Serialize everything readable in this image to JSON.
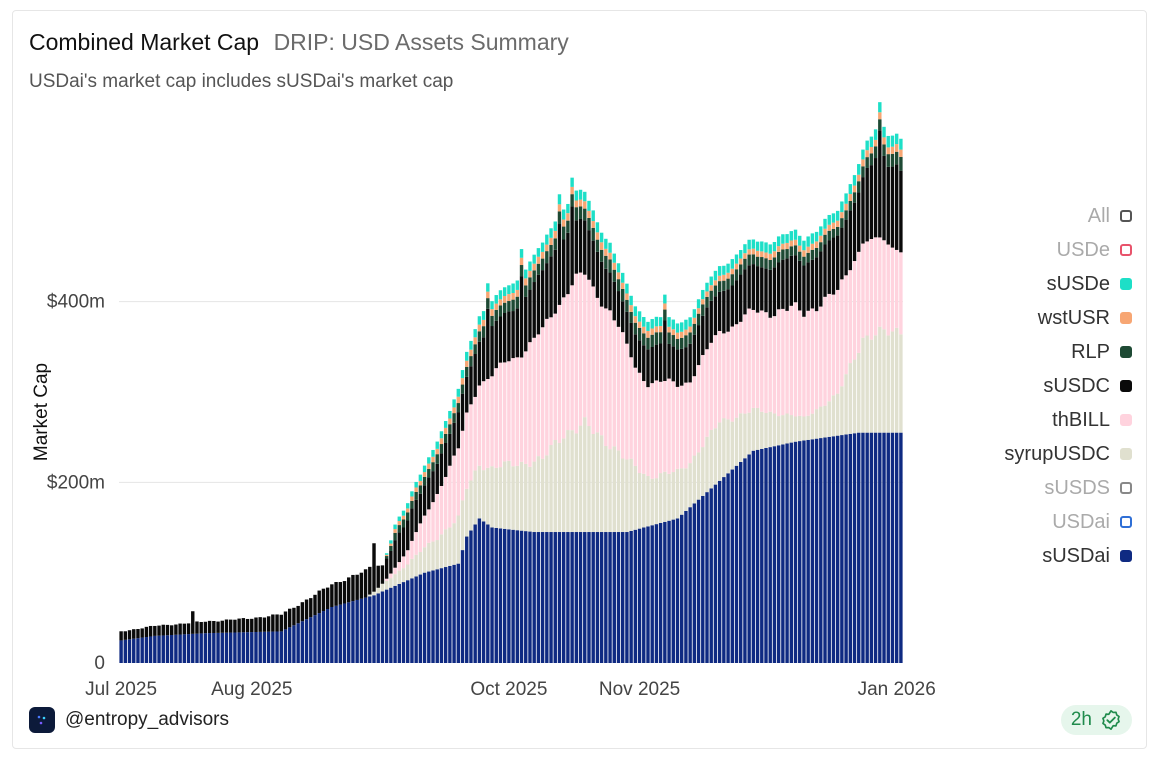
{
  "header": {
    "title": "Combined Market Cap",
    "subtitle": "DRIP: USD Assets Summary",
    "description": "USDai's market cap includes sUSDai's market cap"
  },
  "footer": {
    "handle": "@entropy_advisors",
    "freshness": "2h"
  },
  "legend": [
    {
      "label": "All",
      "color": "#555555",
      "active": false
    },
    {
      "label": "USDe",
      "color": "#e8536b",
      "active": false
    },
    {
      "label": "sUSDe",
      "color": "#1ddfc7",
      "active": true
    },
    {
      "label": "wstUSR",
      "color": "#f7a673",
      "active": true
    },
    {
      "label": "RLP",
      "color": "#1e4a34",
      "active": true
    },
    {
      "label": "sUSDC",
      "color": "#0a0a0a",
      "active": true
    },
    {
      "label": "thBILL",
      "color": "#ffd3de",
      "active": true
    },
    {
      "label": "syrupUSDC",
      "color": "#e0e0cf",
      "active": true
    },
    {
      "label": "sUSDS",
      "color": "#888888",
      "active": false
    },
    {
      "label": "USDai",
      "color": "#2f6fd6",
      "active": false
    },
    {
      "label": "sUSDai",
      "color": "#0f2a82",
      "active": true
    }
  ],
  "chart_data": {
    "type": "bar",
    "stacked": true,
    "title": "Combined Market Cap",
    "ylabel": "Market Cap",
    "xlabel": "",
    "ylim": [
      0,
      600
    ],
    "yunit": "$m",
    "yticks": [
      {
        "value": 0,
        "label": "0"
      },
      {
        "value": 200,
        "label": "$200m"
      },
      {
        "value": 400,
        "label": "$400m"
      }
    ],
    "xticks": [
      {
        "day": 0,
        "label": "Jul 2025"
      },
      {
        "day": 31,
        "label": "Aug 2025"
      },
      {
        "day": 92,
        "label": "Oct 2025"
      },
      {
        "day": 123,
        "label": "Nov 2025"
      },
      {
        "day": 184,
        "label": "Jan 2026"
      }
    ],
    "num_days": 186,
    "series_order": [
      "sUSDai",
      "syrupUSDC",
      "thBILL",
      "sUSDC",
      "RLP",
      "wstUSR",
      "sUSDe"
    ],
    "colors": {
      "sUSDai": "#0f2a82",
      "syrupUSDC": "#e0e0cf",
      "thBILL": "#ffd3de",
      "sUSDC": "#0a0a0a",
      "RLP": "#1e4a34",
      "wstUSR": "#f7a673",
      "sUSDe": "#1ddfc7"
    },
    "anchors": {
      "sUSDai": [
        [
          0,
          25
        ],
        [
          8,
          30
        ],
        [
          20,
          33
        ],
        [
          38,
          35
        ],
        [
          50,
          62
        ],
        [
          60,
          75
        ],
        [
          72,
          100
        ],
        [
          80,
          110
        ],
        [
          82,
          140
        ],
        [
          85,
          160
        ],
        [
          88,
          150
        ],
        [
          98,
          145
        ],
        [
          120,
          145
        ],
        [
          132,
          160
        ],
        [
          150,
          235
        ],
        [
          160,
          245
        ],
        [
          175,
          255
        ],
        [
          186,
          255
        ]
      ],
      "syrupUSDC": [
        [
          0,
          0
        ],
        [
          58,
          0
        ],
        [
          62,
          8
        ],
        [
          68,
          18
        ],
        [
          75,
          35
        ],
        [
          80,
          50
        ],
        [
          85,
          60
        ],
        [
          92,
          72
        ],
        [
          100,
          80
        ],
        [
          105,
          110
        ],
        [
          110,
          118
        ],
        [
          116,
          98
        ],
        [
          125,
          55
        ],
        [
          135,
          50
        ],
        [
          142,
          65
        ],
        [
          150,
          45
        ],
        [
          162,
          25
        ],
        [
          170,
          45
        ],
        [
          176,
          105
        ],
        [
          186,
          115
        ]
      ],
      "thBILL": [
        [
          0,
          0
        ],
        [
          62,
          0
        ],
        [
          68,
          15
        ],
        [
          74,
          45
        ],
        [
          80,
          75
        ],
        [
          86,
          95
        ],
        [
          92,
          115
        ],
        [
          100,
          140
        ],
        [
          108,
          165
        ],
        [
          116,
          150
        ],
        [
          122,
          110
        ],
        [
          135,
          92
        ],
        [
          145,
          103
        ],
        [
          160,
          118
        ],
        [
          175,
          110
        ],
        [
          186,
          90
        ]
      ],
      "sUSDC": [
        [
          0,
          10
        ],
        [
          15,
          12
        ],
        [
          30,
          15
        ],
        [
          45,
          22
        ],
        [
          55,
          28
        ],
        [
          60,
          30
        ],
        [
          62,
          20
        ],
        [
          65,
          30
        ],
        [
          70,
          35
        ],
        [
          78,
          35
        ],
        [
          86,
          50
        ],
        [
          92,
          55
        ],
        [
          98,
          60
        ],
        [
          103,
          70
        ],
        [
          108,
          60
        ],
        [
          112,
          55
        ],
        [
          115,
          45
        ],
        [
          119,
          35
        ],
        [
          124,
          40
        ],
        [
          130,
          40
        ],
        [
          140,
          45
        ],
        [
          150,
          50
        ],
        [
          160,
          55
        ],
        [
          170,
          60
        ],
        [
          176,
          70
        ],
        [
          180,
          95
        ],
        [
          186,
          90
        ]
      ],
      "RLP": [
        [
          0,
          0
        ],
        [
          62,
          0
        ],
        [
          65,
          8
        ],
        [
          75,
          10
        ],
        [
          90,
          12
        ],
        [
          110,
          14
        ],
        [
          140,
          12
        ],
        [
          170,
          10
        ],
        [
          186,
          15
        ]
      ],
      "wstUSR": [
        [
          0,
          0
        ],
        [
          62,
          0
        ],
        [
          65,
          4
        ],
        [
          80,
          7
        ],
        [
          110,
          8
        ],
        [
          140,
          6
        ],
        [
          170,
          7
        ],
        [
          186,
          8
        ]
      ],
      "sUSDe": [
        [
          0,
          0
        ],
        [
          62,
          0
        ],
        [
          65,
          5
        ],
        [
          80,
          9
        ],
        [
          110,
          11
        ],
        [
          140,
          10
        ],
        [
          170,
          11
        ],
        [
          186,
          12
        ]
      ]
    },
    "spikes": [
      {
        "day": 17,
        "value": 12
      },
      {
        "day": 60,
        "value": 25
      },
      {
        "day": 87,
        "value": 25
      },
      {
        "day": 95,
        "value": 30
      },
      {
        "day": 104,
        "value": 25
      },
      {
        "day": 107,
        "value": 22
      },
      {
        "day": 129,
        "value": 25
      },
      {
        "day": 180,
        "value": 20
      }
    ]
  }
}
